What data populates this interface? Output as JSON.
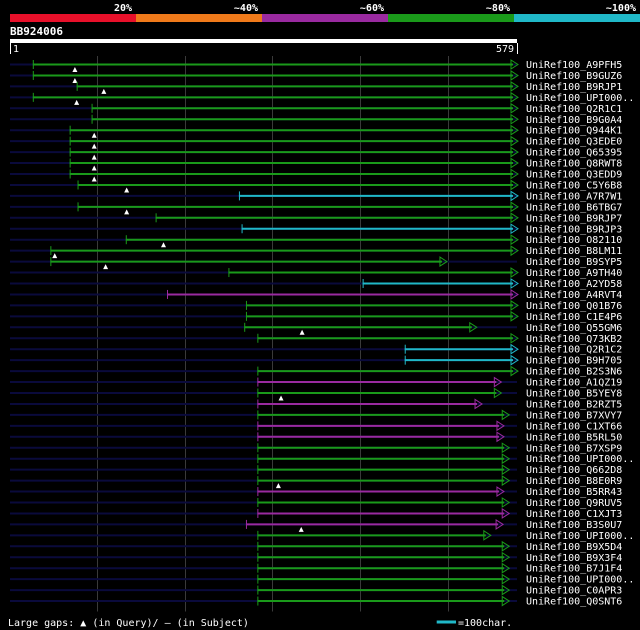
{
  "query_name": "BB924006",
  "query_length": 579,
  "query_start_label": "1",
  "query_end_label": "579",
  "colors": {
    "background": "#000000",
    "underline": "#0a0a3c",
    "grid": "#3a3a3a",
    "ruler": "#ffffff",
    "text": "#ffffff"
  },
  "identity_legend": [
    {
      "label": "20%",
      "color": "#e8102a"
    },
    {
      "label": "~40%",
      "color": "#f07a1a"
    },
    {
      "label": "~60%",
      "color": "#9a2aa0"
    },
    {
      "label": "~80%",
      "color": "#1a9a1a"
    },
    {
      "label": "~100%",
      "color": "#20b8c8"
    }
  ],
  "footer": {
    "gaps_prefix": "Large gaps:",
    "gap_query_marker": "▲",
    "gap_query_text": "(in Query)/",
    "gap_subject_marker": "–",
    "gap_subject_text": "(in Subject)",
    "scale_label": "=100char.",
    "scale_chars": 100
  },
  "chart_data": {
    "type": "alignment",
    "title": "BB924006",
    "x_range": [
      1,
      579
    ],
    "grid_positions": [
      100,
      200,
      300,
      400,
      500
    ],
    "hits": [
      {
        "name": "UniRef100_A9PFH5",
        "start": 27,
        "end": 579,
        "identity": "~80%",
        "query_gaps": [
          75
        ],
        "arrow": "open"
      },
      {
        "name": "UniRef100_B9GUZ6",
        "start": 27,
        "end": 579,
        "identity": "~80%",
        "query_gaps": [
          75
        ],
        "arrow": "open"
      },
      {
        "name": "UniRef100_B9RJP1",
        "start": 77,
        "end": 579,
        "identity": "~80%",
        "query_gaps": [
          108
        ],
        "arrow": "open"
      },
      {
        "name": "UniRef100_UPI000..",
        "start": 27,
        "end": 579,
        "identity": "~80%",
        "query_gaps": [
          77
        ],
        "arrow": "open"
      },
      {
        "name": "UniRef100_Q2R1C1",
        "start": 94,
        "end": 579,
        "identity": "~80%",
        "query_gaps": [],
        "arrow": "open"
      },
      {
        "name": "UniRef100_B9G0A4",
        "start": 94,
        "end": 579,
        "identity": "~80%",
        "query_gaps": [],
        "arrow": "open"
      },
      {
        "name": "UniRef100_Q944K1",
        "start": 69,
        "end": 579,
        "identity": "~80%",
        "query_gaps": [
          97
        ],
        "arrow": "open"
      },
      {
        "name": "UniRef100_Q3EDE0",
        "start": 69,
        "end": 579,
        "identity": "~80%",
        "query_gaps": [
          97
        ],
        "arrow": "open"
      },
      {
        "name": "UniRef100_Q65395",
        "start": 69,
        "end": 579,
        "identity": "~80%",
        "query_gaps": [
          97
        ],
        "arrow": "open"
      },
      {
        "name": "UniRef100_Q8RWT8",
        "start": 69,
        "end": 579,
        "identity": "~80%",
        "query_gaps": [
          97
        ],
        "arrow": "open"
      },
      {
        "name": "UniRef100_Q3EDD9",
        "start": 69,
        "end": 579,
        "identity": "~80%",
        "query_gaps": [
          97
        ],
        "arrow": "open"
      },
      {
        "name": "UniRef100_C5Y6B8",
        "start": 78,
        "end": 579,
        "identity": "~80%",
        "query_gaps": [
          134
        ],
        "arrow": "open"
      },
      {
        "name": "UniRef100_A7R7W1",
        "start": 262,
        "end": 579,
        "identity": "~100%",
        "query_gaps": [],
        "arrow": "open"
      },
      {
        "name": "UniRef100_B6TBG7",
        "start": 78,
        "end": 579,
        "identity": "~80%",
        "query_gaps": [
          134
        ],
        "arrow": "open"
      },
      {
        "name": "UniRef100_B9RJP7",
        "start": 167,
        "end": 579,
        "identity": "~80%",
        "query_gaps": [],
        "arrow": "open"
      },
      {
        "name": "UniRef100_B9RJP3",
        "start": 265,
        "end": 579,
        "identity": "~100%",
        "query_gaps": [],
        "arrow": "open"
      },
      {
        "name": "UniRef100_O82110",
        "start": 133,
        "end": 579,
        "identity": "~80%",
        "query_gaps": [
          176
        ],
        "arrow": "open"
      },
      {
        "name": "UniRef100_B8LM11",
        "start": 47,
        "end": 579,
        "identity": "~80%",
        "query_gaps": [
          52
        ],
        "arrow": "open"
      },
      {
        "name": "UniRef100_B9SYP5",
        "start": 47,
        "end": 498,
        "identity": "~80%",
        "query_gaps": [
          110
        ],
        "arrow": "open"
      },
      {
        "name": "UniRef100_A9TH40",
        "start": 250,
        "end": 579,
        "identity": "~80%",
        "query_gaps": [],
        "arrow": "open"
      },
      {
        "name": "UniRef100_A2YD58",
        "start": 403,
        "end": 579,
        "identity": "~100%",
        "query_gaps": [],
        "arrow": "open"
      },
      {
        "name": "UniRef100_A4RVT4",
        "start": 180,
        "end": 579,
        "identity": "~60%",
        "query_gaps": [],
        "arrow": "open"
      },
      {
        "name": "UniRef100_Q01B76",
        "start": 270,
        "end": 579,
        "identity": "~80%",
        "query_gaps": [],
        "arrow": "open"
      },
      {
        "name": "UniRef100_C1E4P6",
        "start": 270,
        "end": 579,
        "identity": "~80%",
        "query_gaps": [],
        "arrow": "open"
      },
      {
        "name": "UniRef100_Q55GM6",
        "start": 268,
        "end": 532,
        "identity": "~80%",
        "query_gaps": [
          334
        ],
        "arrow": "open"
      },
      {
        "name": "UniRef100_Q73KB2",
        "start": 283,
        "end": 579,
        "identity": "~80%",
        "query_gaps": [],
        "arrow": "open"
      },
      {
        "name": "UniRef100_Q2R1C2",
        "start": 451,
        "end": 579,
        "identity": "~100%",
        "query_gaps": [],
        "arrow": "open"
      },
      {
        "name": "UniRef100_B9H705",
        "start": 451,
        "end": 579,
        "identity": "~100%",
        "query_gaps": [],
        "arrow": "open"
      },
      {
        "name": "UniRef100_B2S3N6",
        "start": 283,
        "end": 579,
        "identity": "~80%",
        "query_gaps": [],
        "arrow": "open"
      },
      {
        "name": "UniRef100_A1QZ19",
        "start": 283,
        "end": 560,
        "identity": "~60%",
        "query_gaps": [],
        "arrow": "open"
      },
      {
        "name": "UniRef100_B5YEY8",
        "start": 283,
        "end": 560,
        "identity": "~80%",
        "query_gaps": [
          310
        ],
        "arrow": "open"
      },
      {
        "name": "UniRef100_B2RZT5",
        "start": 283,
        "end": 538,
        "identity": "~60%",
        "query_gaps": [],
        "arrow": "open"
      },
      {
        "name": "UniRef100_B7XVY7",
        "start": 283,
        "end": 569,
        "identity": "~80%",
        "query_gaps": [],
        "arrow": "open"
      },
      {
        "name": "UniRef100_C1XT66",
        "start": 283,
        "end": 563,
        "identity": "~60%",
        "query_gaps": [],
        "arrow": "open"
      },
      {
        "name": "UniRef100_B5RL50",
        "start": 283,
        "end": 563,
        "identity": "~60%",
        "query_gaps": [],
        "arrow": "open"
      },
      {
        "name": "UniRef100_B7XSP9",
        "start": 283,
        "end": 569,
        "identity": "~80%",
        "query_gaps": [],
        "arrow": "open"
      },
      {
        "name": "UniRef100_UPI000..",
        "start": 283,
        "end": 569,
        "identity": "~80%",
        "query_gaps": [],
        "arrow": "open"
      },
      {
        "name": "UniRef100_Q662D8",
        "start": 283,
        "end": 569,
        "identity": "~80%",
        "query_gaps": [],
        "arrow": "open"
      },
      {
        "name": "UniRef100_B8E0R9",
        "start": 283,
        "end": 569,
        "identity": "~80%",
        "query_gaps": [
          307
        ],
        "arrow": "open"
      },
      {
        "name": "UniRef100_B5RR43",
        "start": 283,
        "end": 563,
        "identity": "~60%",
        "query_gaps": [],
        "arrow": "open"
      },
      {
        "name": "UniRef100_Q9RUV5",
        "start": 283,
        "end": 569,
        "identity": "~80%",
        "query_gaps": [],
        "arrow": "open"
      },
      {
        "name": "UniRef100_C1XJT3",
        "start": 283,
        "end": 569,
        "identity": "~60%",
        "query_gaps": [],
        "arrow": "open"
      },
      {
        "name": "UniRef100_B3S0U7",
        "start": 270,
        "end": 562,
        "identity": "~60%",
        "query_gaps": [
          333
        ],
        "arrow": "open"
      },
      {
        "name": "UniRef100_UPI000..",
        "start": 283,
        "end": 548,
        "identity": "~80%",
        "query_gaps": [],
        "arrow": "open"
      },
      {
        "name": "UniRef100_B9X5D4",
        "start": 283,
        "end": 569,
        "identity": "~80%",
        "query_gaps": [],
        "arrow": "open"
      },
      {
        "name": "UniRef100_B9X3F4",
        "start": 283,
        "end": 569,
        "identity": "~80%",
        "query_gaps": [],
        "arrow": "open"
      },
      {
        "name": "UniRef100_B7J1F4",
        "start": 283,
        "end": 569,
        "identity": "~80%",
        "query_gaps": [],
        "arrow": "open"
      },
      {
        "name": "UniRef100_UPI000..",
        "start": 283,
        "end": 569,
        "identity": "~80%",
        "query_gaps": [],
        "arrow": "open"
      },
      {
        "name": "UniRef100_C0APR3",
        "start": 283,
        "end": 569,
        "identity": "~80%",
        "query_gaps": [],
        "arrow": "open"
      },
      {
        "name": "UniRef100_Q0SNT6",
        "start": 283,
        "end": 569,
        "identity": "~80%",
        "query_gaps": [],
        "arrow": "open"
      }
    ]
  }
}
